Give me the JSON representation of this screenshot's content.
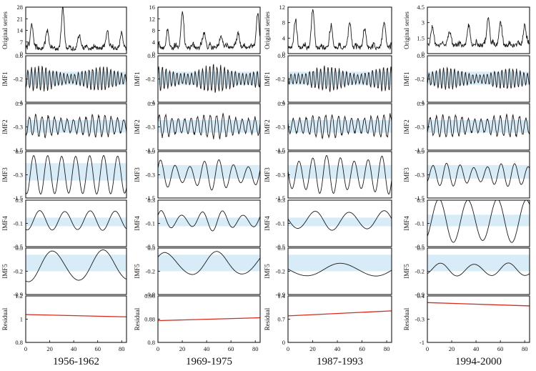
{
  "figure": {
    "colors": {
      "line": "#1a1a1a",
      "residual_line": "#d62a1e",
      "band": "#d8ecf8",
      "frame": "#000000"
    }
  },
  "chart_data": [
    {
      "type": "line",
      "column_title": "1956-1962",
      "x": {
        "range": [
          0,
          84
        ],
        "ticks": [
          0,
          20,
          40,
          60,
          80
        ]
      },
      "panels": [
        {
          "ylabel": "Original series",
          "ylim": [
            0,
            28
          ],
          "ticks": [
            0,
            7,
            14,
            21,
            28
          ],
          "band": null,
          "kind": "original",
          "base": 3,
          "peaks": [
            [
              5,
              18
            ],
            [
              18,
              14
            ],
            [
              31,
              27
            ],
            [
              45,
              10
            ],
            [
              68,
              14
            ],
            [
              80,
              12
            ]
          ]
        },
        {
          "ylabel": "IMF1",
          "ylim": [
            -1,
            0.6
          ],
          "ticks": [
            "0.6",
            "-0.2",
            "-1"
          ],
          "band": [
            -0.4,
            0.05
          ],
          "kind": "imf",
          "center": -0.2,
          "amp": 0.4,
          "cycles": 28,
          "mod": 0.6
        },
        {
          "ylabel": "IMF2",
          "ylim": [
            -1.5,
            0.9
          ],
          "ticks": [
            "0.9",
            "-0.3",
            "-1.5"
          ],
          "band": [
            -0.6,
            0.05
          ],
          "kind": "imf",
          "center": -0.25,
          "amp": 0.55,
          "cycles": 16,
          "mod": 0.4
        },
        {
          "ylabel": "IMF3",
          "ylim": [
            -1.5,
            0.9
          ],
          "ticks": [
            "0.9",
            "-0.3",
            "-1.5"
          ],
          "band": [
            -0.6,
            0.3
          ],
          "kind": "imf",
          "center": -0.3,
          "amp": 1.0,
          "cycles": 7.2,
          "mod": 0.05
        },
        {
          "ylabel": "IMF4",
          "ylim": [
            -0.5,
            0.3
          ],
          "ticks": [
            "0.3",
            "-0.1",
            "-0.5"
          ],
          "band": [
            -0.15,
            0.0
          ],
          "kind": "imf",
          "center": -0.05,
          "amp": 0.17,
          "cycles": 4,
          "mod": 0.1
        },
        {
          "ylabel": "IMF5",
          "ylim": [
            -0.9,
            0.5
          ],
          "ticks": [
            "0.5",
            "-0.2",
            "-0.9"
          ],
          "band": [
            -0.2,
            0.3
          ],
          "kind": "imf",
          "center": -0.05,
          "amp": 0.5,
          "cycles": 2,
          "mod": 0.2
        },
        {
          "ylabel": "Residual",
          "ylim": [
            0.8,
            1.2
          ],
          "ticks": [
            "1.2",
            "1",
            "0.8"
          ],
          "band": null,
          "kind": "residual",
          "values": [
            1.04,
            1.02
          ]
        }
      ]
    },
    {
      "type": "line",
      "column_title": "1969-1975",
      "x": {
        "range": [
          0,
          84
        ],
        "ticks": [
          0,
          20,
          40,
          60,
          80
        ]
      },
      "panels": [
        {
          "ylabel": "",
          "ylim": [
            0,
            16
          ],
          "ticks": [
            0,
            4,
            8,
            12,
            16
          ],
          "band": null,
          "kind": "original",
          "base": 2,
          "peaks": [
            [
              8,
              7
            ],
            [
              20,
              14
            ],
            [
              38,
              7
            ],
            [
              52,
              6
            ],
            [
              66,
              7
            ],
            [
              82,
              14
            ]
          ]
        },
        {
          "ylabel": "IMF1",
          "ylim": [
            -1,
            0.6
          ],
          "ticks": [
            "0.6",
            "-0.2",
            "-1"
          ],
          "band": [
            -0.4,
            0.05
          ],
          "kind": "imf",
          "center": -0.2,
          "amp": 0.45,
          "cycles": 28,
          "mod": 0.6
        },
        {
          "ylabel": "IMF2",
          "ylim": [
            -1.5,
            0.9
          ],
          "ticks": [
            "0.9",
            "-0.3",
            "-1.5"
          ],
          "band": [
            -0.6,
            0.05
          ],
          "kind": "imf",
          "center": -0.25,
          "amp": 0.6,
          "cycles": 16,
          "mod": 0.4
        },
        {
          "ylabel": "IMF3",
          "ylim": [
            -1.5,
            0.9
          ],
          "ticks": [
            "0.9",
            "-0.3",
            "-1.5"
          ],
          "band": [
            -0.5,
            0.2
          ],
          "kind": "imf",
          "center": -0.3,
          "amp": 0.8,
          "cycles": 7,
          "mod": 0.5
        },
        {
          "ylabel": "IMF4",
          "ylim": [
            -0.5,
            0.3
          ],
          "ticks": [
            "0.3",
            "-0.1",
            "-0.5"
          ],
          "band": [
            -0.15,
            0.0
          ],
          "kind": "imf",
          "center": -0.05,
          "amp": 0.18,
          "cycles": 5,
          "mod": 0.5
        },
        {
          "ylabel": "IMF5",
          "ylim": [
            -0.9,
            0.5
          ],
          "ticks": [
            "0.5",
            "-0.2",
            "-0.9"
          ],
          "band": [
            -0.2,
            0.3
          ],
          "kind": "imf",
          "center": 0.0,
          "amp": 0.4,
          "cycles": 2,
          "mod": 0.3
        },
        {
          "ylabel": "Residual",
          "ylim": [
            0.8,
            0.96
          ],
          "ticks": [
            "0.96",
            "0.88",
            "0.8"
          ],
          "band": null,
          "kind": "residual",
          "values": [
            0.875,
            0.885
          ]
        }
      ]
    },
    {
      "type": "line",
      "column_title": "1987-1993",
      "x": {
        "range": [
          0,
          84
        ],
        "ticks": [
          0,
          20,
          40,
          60,
          80
        ]
      },
      "panels": [
        {
          "ylabel": "Original series",
          "ylim": [
            0,
            12
          ],
          "ticks": [
            0,
            4,
            8,
            12
          ],
          "band": null,
          "kind": "original",
          "base": 1.5,
          "peaks": [
            [
              6,
              8
            ],
            [
              20,
              11
            ],
            [
              35,
              7
            ],
            [
              50,
              8
            ],
            [
              62,
              6
            ],
            [
              78,
              8
            ]
          ]
        },
        {
          "ylabel": "IMF1",
          "ylim": [
            -1,
            0.6
          ],
          "ticks": [
            "0.6",
            "-0.2",
            "-1"
          ],
          "band": [
            -0.4,
            0.05
          ],
          "kind": "imf",
          "center": -0.2,
          "amp": 0.4,
          "cycles": 28,
          "mod": 0.6
        },
        {
          "ylabel": "IMF2",
          "ylim": [
            -1.5,
            0.9
          ],
          "ticks": [
            "0.9",
            "-0.3",
            "-1.5"
          ],
          "band": [
            -0.6,
            0.05
          ],
          "kind": "imf",
          "center": -0.25,
          "amp": 0.6,
          "cycles": 16,
          "mod": 0.4
        },
        {
          "ylabel": "IMF3",
          "ylim": [
            -1.5,
            0.9
          ],
          "ticks": [
            "0.9",
            "-0.3",
            "-1.5"
          ],
          "band": [
            -0.5,
            0.2
          ],
          "kind": "imf",
          "center": -0.3,
          "amp": 1.0,
          "cycles": 7.5,
          "mod": 0.3
        },
        {
          "ylabel": "IMF4",
          "ylim": [
            -0.5,
            0.3
          ],
          "ticks": [
            "0.3",
            "-0.1",
            "-0.5"
          ],
          "band": [
            -0.15,
            0.0
          ],
          "kind": "imf",
          "center": -0.05,
          "amp": 0.17,
          "cycles": 3,
          "mod": 0.2
        },
        {
          "ylabel": "IMF5",
          "ylim": [
            -0.9,
            0.5
          ],
          "ticks": [
            "0.5",
            "-0.2",
            "-0.9"
          ],
          "band": [
            -0.2,
            0.3
          ],
          "kind": "imf",
          "center": -0.15,
          "amp": 0.2,
          "cycles": 1.5,
          "mod": 0.1
        },
        {
          "ylabel": "Residual",
          "ylim": [
            0,
            1.4
          ],
          "ticks": [
            "1.4",
            "0.7",
            "0"
          ],
          "band": null,
          "kind": "residual",
          "values": [
            0.8,
            0.95
          ]
        }
      ]
    },
    {
      "type": "line",
      "column_title": "1994-2000",
      "x": {
        "range": [
          0,
          84
        ],
        "ticks": [
          0,
          20,
          40,
          60,
          80
        ]
      },
      "panels": [
        {
          "ylabel": "Original series",
          "ylim": [
            0,
            4.5
          ],
          "ticks": [
            0,
            1.5,
            3,
            4.5
          ],
          "band": null,
          "kind": "original",
          "base": 0.8,
          "peaks": [
            [
              4,
              2.5
            ],
            [
              18,
              2
            ],
            [
              34,
              2.5
            ],
            [
              50,
              3.6
            ],
            [
              60,
              3
            ],
            [
              80,
              2.8
            ]
          ]
        },
        {
          "ylabel": "IMF1",
          "ylim": [
            -1,
            0.6
          ],
          "ticks": [
            "0.6",
            "-0.2",
            "-1"
          ],
          "band": [
            -0.4,
            0.05
          ],
          "kind": "imf",
          "center": -0.2,
          "amp": 0.35,
          "cycles": 28,
          "mod": 0.6
        },
        {
          "ylabel": "IMF2",
          "ylim": [
            -1.5,
            0.9
          ],
          "ticks": [
            "0.9",
            "-0.3",
            "-1.5"
          ],
          "band": [
            -0.6,
            0.05
          ],
          "kind": "imf",
          "center": -0.25,
          "amp": 0.55,
          "cycles": 16,
          "mod": 0.4
        },
        {
          "ylabel": "IMF3",
          "ylim": [
            -1.5,
            0.9
          ],
          "ticks": [
            "0.9",
            "-0.3",
            "-1.5"
          ],
          "band": [
            -0.5,
            0.2
          ],
          "kind": "imf",
          "center": -0.3,
          "amp": 0.6,
          "cycles": 7.5,
          "mod": 0.4
        },
        {
          "ylabel": "IMF4",
          "ylim": [
            -0.5,
            0.3
          ],
          "ticks": [
            "0.3",
            "-0.1",
            "-0.5"
          ],
          "band": [
            -0.15,
            0.05
          ],
          "kind": "imf",
          "center": -0.05,
          "amp": 0.38,
          "cycles": 3.5,
          "mod": 0.1
        },
        {
          "ylabel": "IMF5",
          "ylim": [
            -0.9,
            0.5
          ],
          "ticks": [
            "0.5",
            "-0.2",
            "-0.9"
          ],
          "band": [
            -0.2,
            0.3
          ],
          "kind": "imf",
          "center": -0.15,
          "amp": 0.2,
          "cycles": 3,
          "mod": 0.2
        },
        {
          "ylabel": "Residual",
          "ylim": [
            -1,
            0.4
          ],
          "ticks": [
            "0.4",
            "-0.3",
            "-1"
          ],
          "band": null,
          "kind": "residual",
          "values": [
            0.2,
            0.1
          ]
        }
      ]
    }
  ]
}
